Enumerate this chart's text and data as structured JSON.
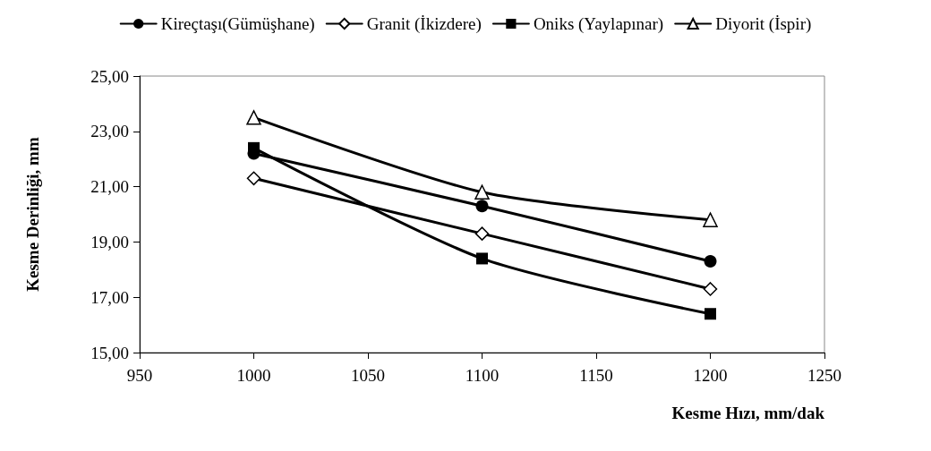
{
  "chart_data": {
    "type": "line",
    "xlabel": "Kesme Hızı, mm/dak",
    "ylabel": "Kesme Derinliği, mm",
    "x": [
      1000,
      1100,
      1200
    ],
    "series": [
      {
        "name": "Kireçtaşı(Gümüşhane)",
        "color": "#000000",
        "marker": "circle",
        "values": [
          22.2,
          20.3,
          18.3
        ]
      },
      {
        "name": "Granit (İkizdere)",
        "color": "#000000",
        "marker": "diamond",
        "values": [
          21.3,
          19.3,
          17.3
        ]
      },
      {
        "name": "Oniks (Yaylapınar)",
        "color": "#000000",
        "marker": "square",
        "values": [
          22.4,
          18.4,
          16.4
        ]
      },
      {
        "name": "Diyorit (İspir)",
        "color": "#000000",
        "marker": "triangle",
        "values": [
          23.5,
          20.8,
          19.8
        ]
      }
    ],
    "xlim": [
      950,
      1250
    ],
    "xticks": [
      950,
      1000,
      1050,
      1100,
      1150,
      1200,
      1250
    ],
    "ylim": [
      15,
      25
    ],
    "yticks": [
      {
        "value": 15,
        "label": "15,00"
      },
      {
        "value": 17,
        "label": "17,00"
      },
      {
        "value": 19,
        "label": "19,00"
      },
      {
        "value": 21,
        "label": "21,00"
      },
      {
        "value": 23,
        "label": "23,00"
      },
      {
        "value": 25,
        "label": "25,00"
      }
    ],
    "grid": false,
    "legend": "top",
    "line_style": "solid"
  }
}
